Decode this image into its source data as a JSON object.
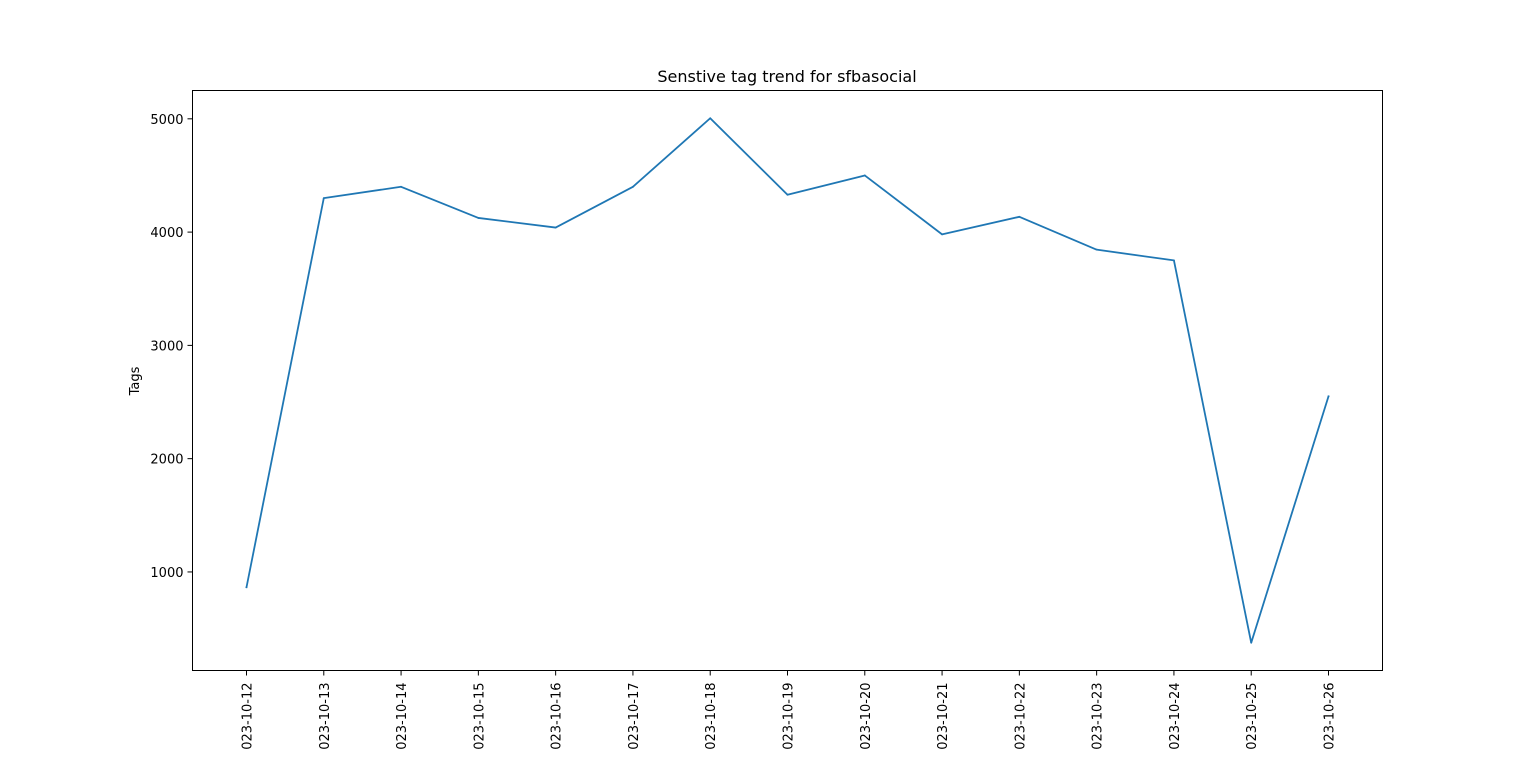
{
  "chart_data": {
    "type": "line",
    "title": "Senstive tag trend for sfbasocial",
    "xlabel": "",
    "ylabel": "Tags",
    "x": [
      "2023-10-12",
      "2023-10-13",
      "2023-10-14",
      "2023-10-15",
      "2023-10-16",
      "2023-10-17",
      "2023-10-18",
      "2023-10-19",
      "2023-10-20",
      "2023-10-21",
      "2023-10-22",
      "2023-10-23",
      "2023-10-24",
      "2023-10-25",
      "2023-10-26"
    ],
    "x_tick_labels": [
      "023-10-12",
      "023-10-13",
      "023-10-14",
      "023-10-15",
      "023-10-16",
      "023-10-17",
      "023-10-18",
      "023-10-19",
      "023-10-20",
      "023-10-21",
      "023-10-22",
      "023-10-23",
      "023-10-24",
      "023-10-25",
      "023-10-26"
    ],
    "series": [
      {
        "values": [
          865,
          4300,
          4400,
          4125,
          4040,
          4400,
          5005,
          4330,
          4500,
          3980,
          4135,
          3845,
          3750,
          375,
          2550
        ],
        "color": "#1f77b4"
      }
    ],
    "y_ticks": [
      1000,
      2000,
      3000,
      4000,
      5000
    ],
    "y_tick_labels": [
      "1000",
      "2000",
      "3000",
      "4000",
      "5000"
    ],
    "ylim": [
      130,
      5250
    ],
    "grid": false,
    "legend": "none"
  }
}
